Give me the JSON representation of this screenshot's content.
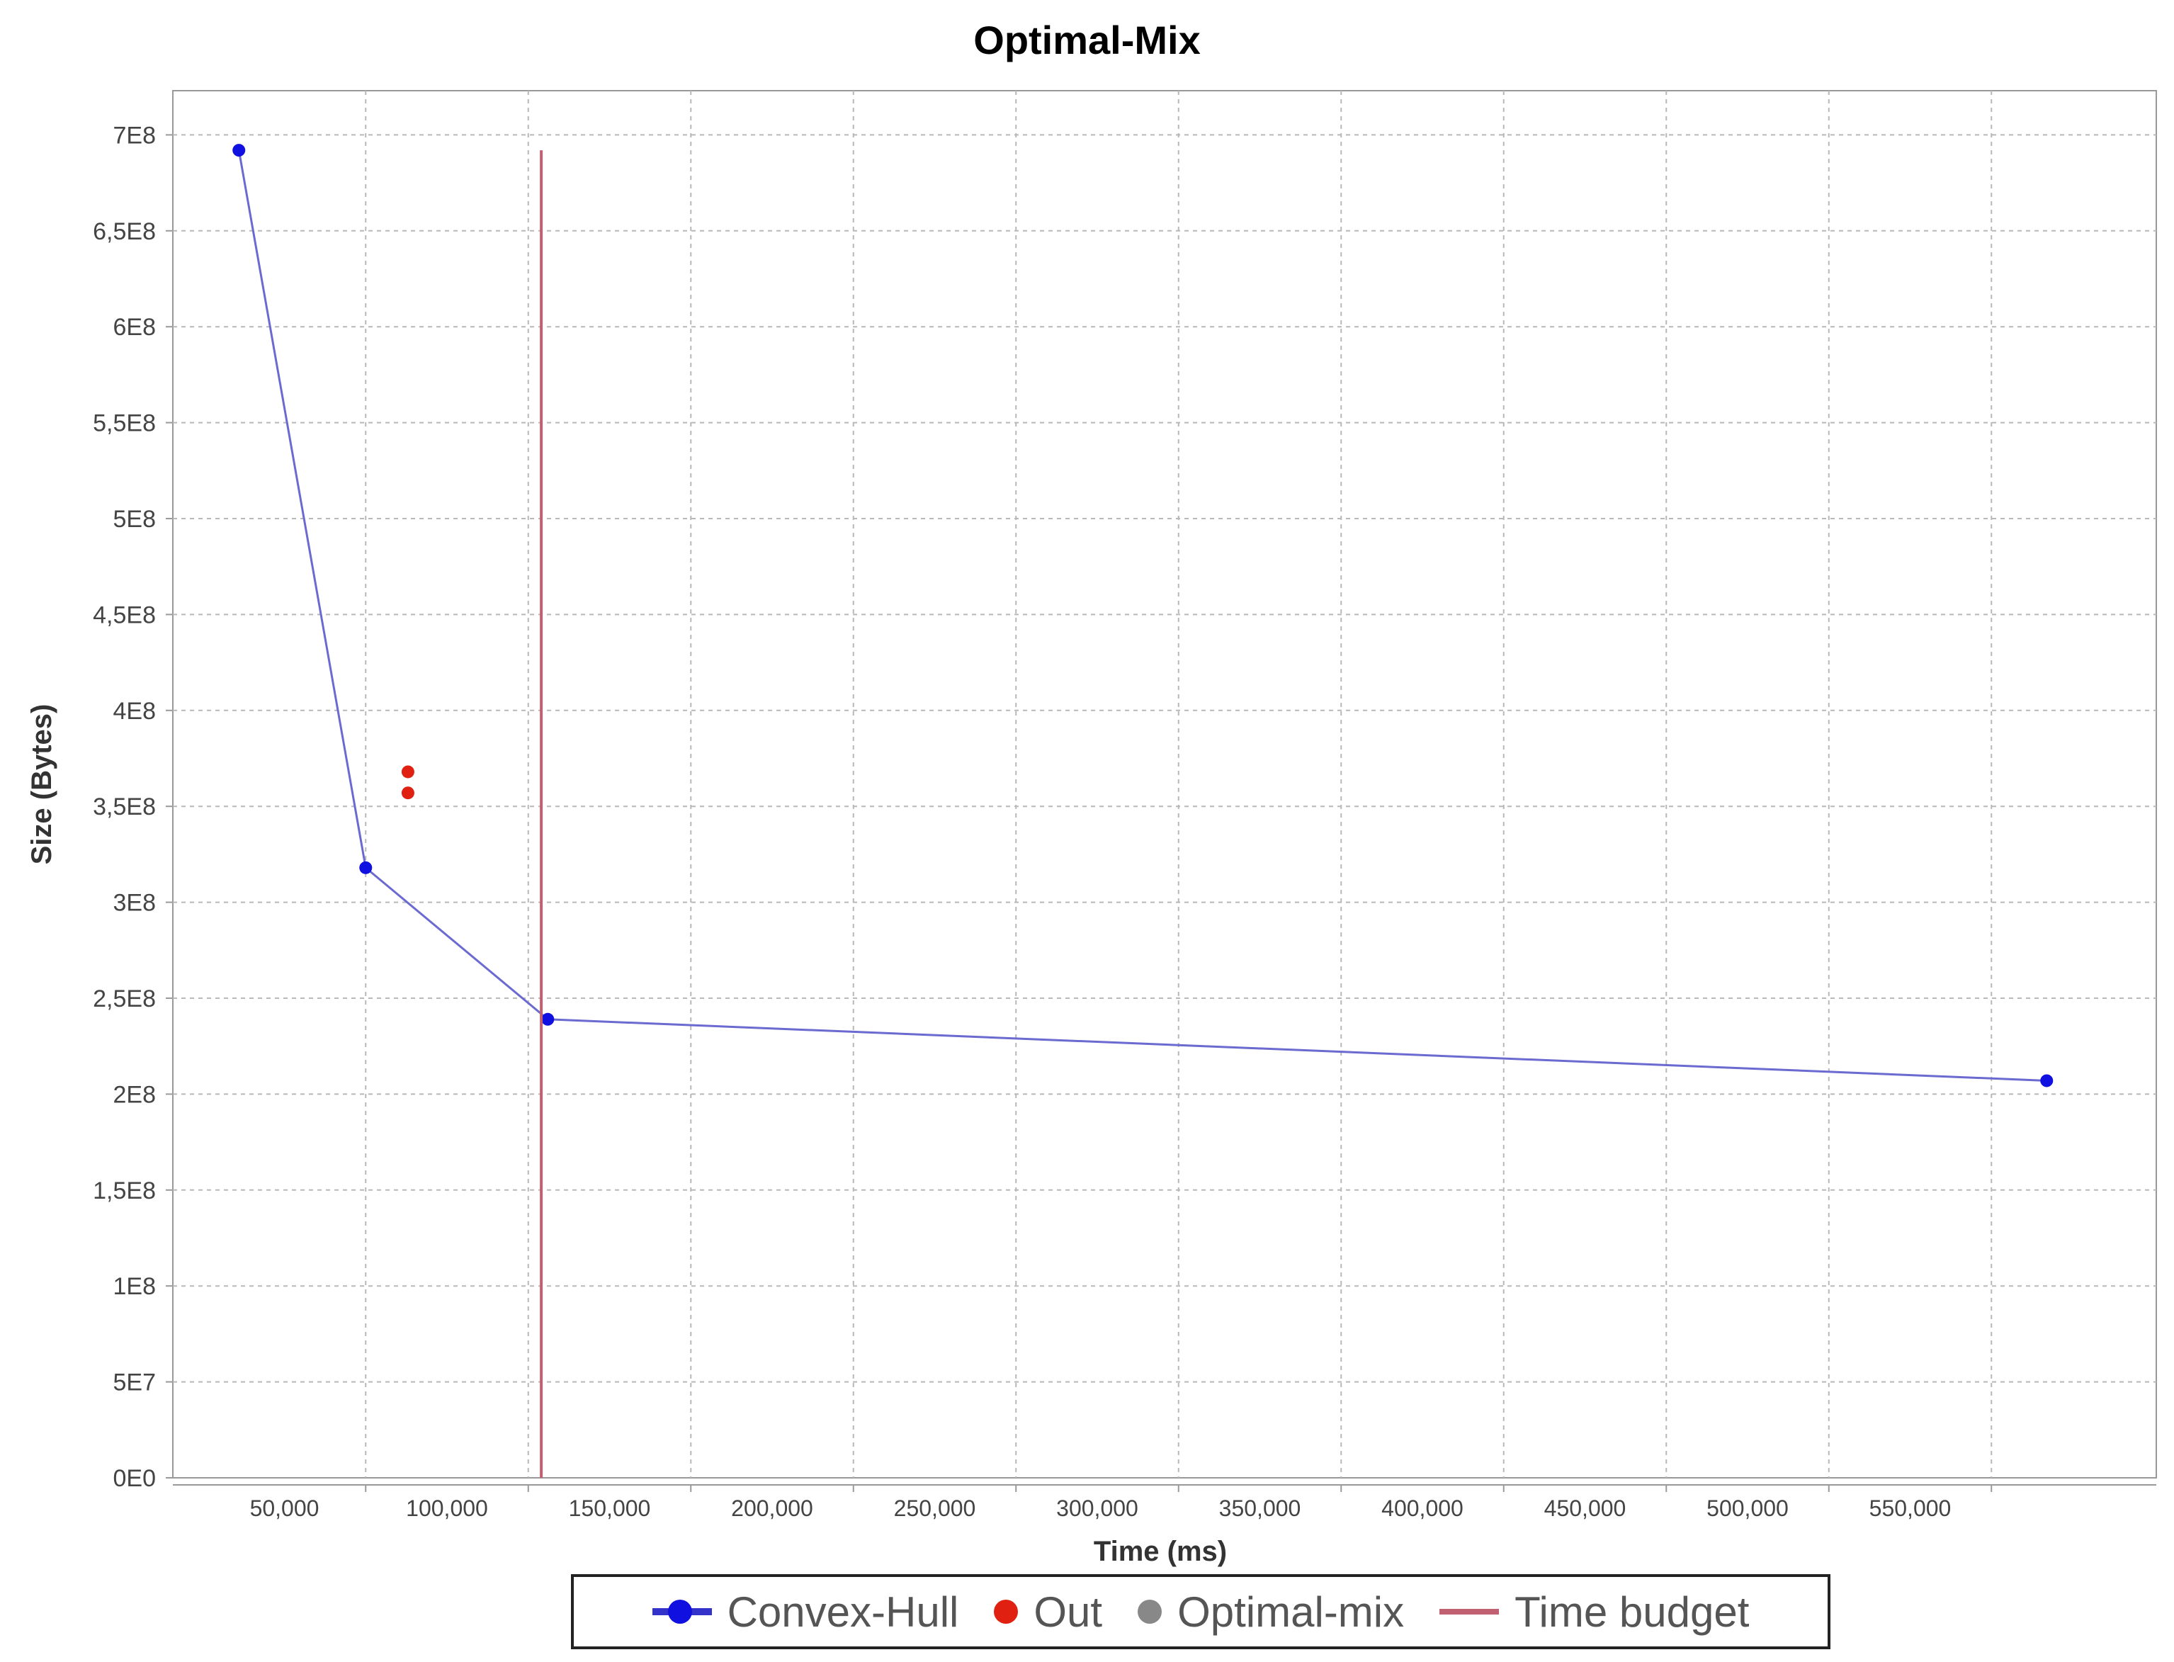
{
  "chart_data": {
    "type": "scatter",
    "title": "Optimal-Mix",
    "xlabel": "Time (ms)",
    "ylabel": "Size (Bytes)",
    "xlim": [
      0,
      600000
    ],
    "ylim": [
      0,
      720000000
    ],
    "x_ticks": [
      {
        "value": 50000,
        "label": "50,000"
      },
      {
        "value": 100000,
        "label": "100,000"
      },
      {
        "value": 150000,
        "label": "150,000"
      },
      {
        "value": 200000,
        "label": "200,000"
      },
      {
        "value": 250000,
        "label": "250,000"
      },
      {
        "value": 300000,
        "label": "300,000"
      },
      {
        "value": 350000,
        "label": "350,000"
      },
      {
        "value": 400000,
        "label": "400,000"
      },
      {
        "value": 450000,
        "label": "450,000"
      },
      {
        "value": 500000,
        "label": "500,000"
      },
      {
        "value": 550000,
        "label": "550,000"
      }
    ],
    "y_ticks": [
      {
        "value": 0,
        "label": "0E0"
      },
      {
        "value": 50000000,
        "label": "5E7"
      },
      {
        "value": 100000000,
        "label": "1E8"
      },
      {
        "value": 150000000,
        "label": "1,5E8"
      },
      {
        "value": 200000000,
        "label": "2E8"
      },
      {
        "value": 250000000,
        "label": "2,5E8"
      },
      {
        "value": 300000000,
        "label": "3E8"
      },
      {
        "value": 350000000,
        "label": "3,5E8"
      },
      {
        "value": 400000000,
        "label": "4E8"
      },
      {
        "value": 450000000,
        "label": "4,5E8"
      },
      {
        "value": 500000000,
        "label": "5E8"
      },
      {
        "value": 550000000,
        "label": "5,5E8"
      },
      {
        "value": 600000000,
        "label": "6E8"
      },
      {
        "value": 650000000,
        "label": "6,5E8"
      },
      {
        "value": 700000000,
        "label": "7E8"
      }
    ],
    "grid": true,
    "legend_position": "bottom",
    "series": [
      {
        "name": "Convex-Hull",
        "kind": "line",
        "color": "#1010e0",
        "line_color": "#6a6ad0",
        "points": [
          {
            "x": 36000,
            "y": 692000000
          },
          {
            "x": 75000,
            "y": 318000000
          },
          {
            "x": 131000,
            "y": 239000000
          },
          {
            "x": 592000,
            "y": 207000000
          }
        ]
      },
      {
        "name": "Out",
        "kind": "scatter",
        "color": "#e02010",
        "points": [
          {
            "x": 88000,
            "y": 368000000
          },
          {
            "x": 88000,
            "y": 357000000
          }
        ]
      },
      {
        "name": "Optimal-mix",
        "kind": "scatter",
        "color": "#888888",
        "points": []
      },
      {
        "name": "Time budget",
        "kind": "vline",
        "color": "#c06070",
        "x": 129000,
        "y_range": [
          0,
          692000000
        ]
      }
    ]
  }
}
